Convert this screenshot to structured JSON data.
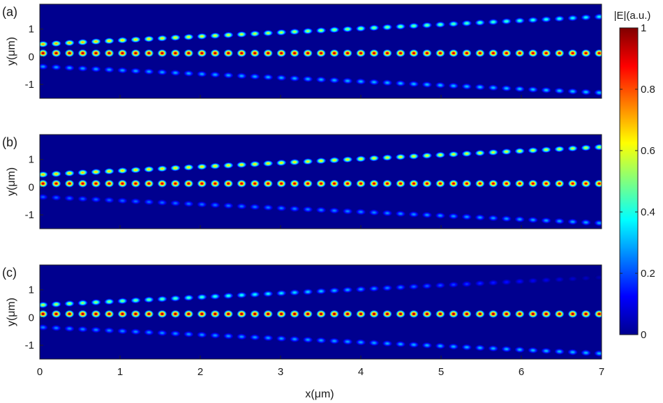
{
  "chart_data": {
    "type": "heatmap",
    "panels": [
      {
        "label": "(a)",
        "ylabel": "y(μm)",
        "waveguides": [
          {
            "y0": 0.45,
            "y1": 1.45,
            "i0": 0.75,
            "i1": 0.38
          },
          {
            "y0": 0.13,
            "y1": 0.13,
            "i0": 1.0,
            "i1": 0.96
          },
          {
            "y0": -0.35,
            "y1": -1.3,
            "i0": 0.28,
            "i1": 0.33
          }
        ]
      },
      {
        "label": "(b)",
        "ylabel": "y(μm)",
        "waveguides": [
          {
            "y0": 0.45,
            "y1": 1.45,
            "i0": 0.72,
            "i1": 0.6
          },
          {
            "y0": 0.13,
            "y1": 0.13,
            "i0": 0.98,
            "i1": 0.94
          },
          {
            "y0": -0.35,
            "y1": -1.3,
            "i0": 0.22,
            "i1": 0.3
          }
        ]
      },
      {
        "label": "(c)",
        "ylabel": "y(μm)",
        "waveguides": [
          {
            "y0": 0.45,
            "y1": 1.45,
            "i0": 0.6,
            "i1": 0.05
          },
          {
            "y0": 0.13,
            "y1": 0.13,
            "i0": 1.0,
            "i1": 1.0
          },
          {
            "y0": -0.35,
            "y1": -1.3,
            "i0": 0.26,
            "i1": 0.32
          }
        ]
      }
    ],
    "xlabel": "x(μm)",
    "xlim": [
      0,
      7
    ],
    "ylim": [
      -1.5,
      1.9
    ],
    "xticks": [
      "0",
      "1",
      "2",
      "3",
      "4",
      "5",
      "6",
      "7"
    ],
    "yticks": [
      "1",
      "0",
      "-1"
    ],
    "ytick_values": [
      1,
      0,
      -1
    ],
    "period_um": 0.165,
    "colorbar": {
      "label": "|E|(a.u.)",
      "range": [
        0,
        1
      ],
      "ticks": [
        "0",
        "0.2",
        "0.4",
        "0.6",
        "0.8",
        "1"
      ],
      "colormap": "jet"
    },
    "background_color": "#00008f"
  }
}
